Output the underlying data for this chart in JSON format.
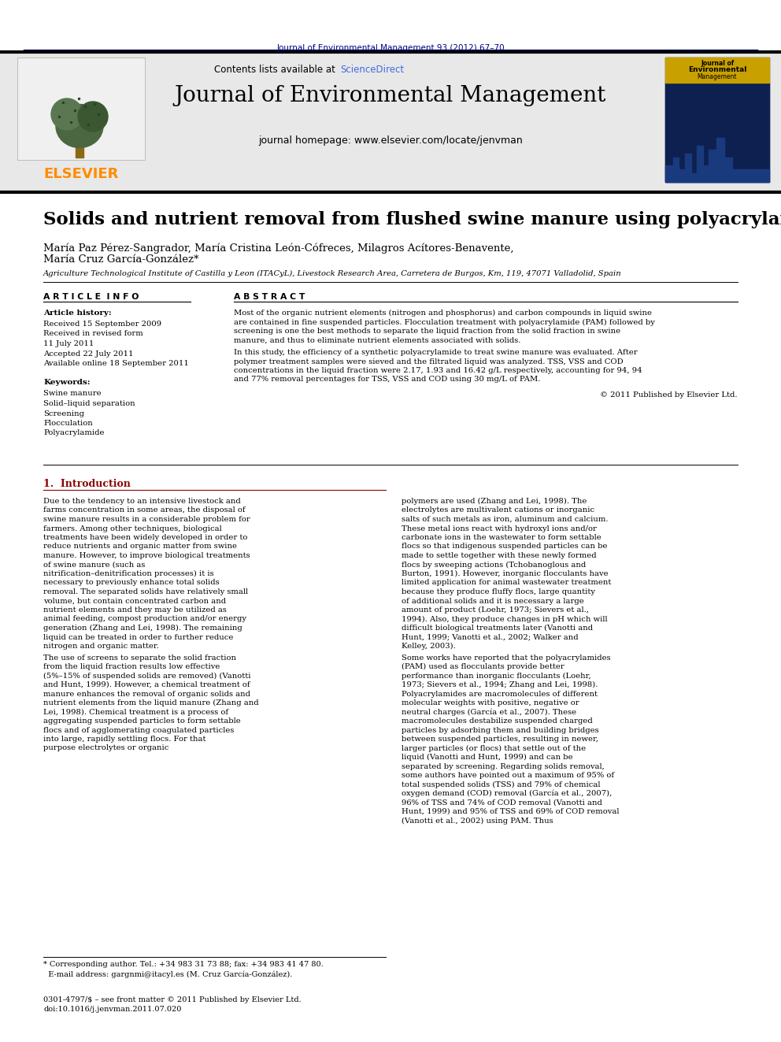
{
  "page_bg": "#ffffff",
  "top_journal_line": "Journal of Environmental Management 93 (2012) 67–70",
  "top_journal_color": "#00008B",
  "journal_title": "Journal of Environmental Management",
  "journal_homepage": "journal homepage: www.elsevier.com/locate/jenvman",
  "contents_text": "Contents lists available at ",
  "sciencedirect_text": "ScienceDirect",
  "sciencedirect_color": "#4169E1",
  "elsevier_color": "#FF8C00",
  "header_bg": "#E8E8E8",
  "paper_title": "Solids and nutrient removal from flushed swine manure using polyacrylamides",
  "authors_line1": "María Paz Pérez-Sangrador, María Cristina León-Cófreces, Milagros Acítores-Benavente,",
  "authors_line2": "María Cruz García-González*",
  "affiliation": "Agriculture Technological Institute of Castilla y Leon (ITACyL), Livestock Research Area, Carretera de Burgos, Km, 119, 47071 Valladolid, Spain",
  "article_info_header": "A R T I C L E  I N F O",
  "abstract_header": "A B S T R A C T",
  "article_history_label": "Article history:",
  "received_1": "Received 15 September 2009",
  "received_revised": "Received in revised form",
  "received_revised_date": "11 July 2011",
  "accepted": "Accepted 22 July 2011",
  "available": "Available online 18 September 2011",
  "keywords_label": "Keywords:",
  "keywords": [
    "Swine manure",
    "Solid–liquid separation",
    "Screening",
    "Flocculation",
    "Polyacrylamide"
  ],
  "abstract_para1": "Most of the organic nutrient elements (nitrogen and phosphorus) and carbon compounds in liquid swine are contained in fine suspended particles. Flocculation treatment with polyacrylamide (PAM) followed by screening is one the best methods to separate the liquid fraction from the solid fraction in swine manure, and thus to eliminate nutrient elements associated with solids.",
  "abstract_para2": "    In this study, the efficiency of a synthetic polyacrylamide to treat swine manure was evaluated. After polymer treatment samples were sieved and the filtrated liquid was analyzed. TSS, VSS and COD concentrations in the liquid fraction were 2.17, 1.93 and 16.42 g/L respectively, accounting for 94, 94 and 77% removal percentages for TSS, VSS and COD using 30 mg/L of PAM.",
  "abstract_copyright": "© 2011 Published by Elsevier Ltd.",
  "intro_header": "1.  Introduction",
  "intro_text_left": "Due to the tendency to an intensive livestock and farms concentration in some areas, the disposal of swine manure results in a considerable problem for farmers. Among other techniques, biological treatments have been widely developed in order to reduce nutrients and organic matter from swine manure. However, to improve biological treatments of swine manure (such as nitrification–denitrification processes) it is necessary to previously enhance total solids removal. The separated solids have relatively small volume, but contain concentrated carbon and nutrient elements and they may be utilized as animal feeding, compost production and/or energy generation (Zhang and Lei, 1998). The remaining liquid can be treated in order to further reduce nitrogen and organic matter.\n    The use of screens to separate the solid fraction from the liquid fraction results low effective (5%–15% of suspended solids are removed) (Vanotti and Hunt, 1999). However, a chemical treatment of manure enhances the removal of organic solids and nutrient elements from the liquid manure (Zhang and Lei, 1998). Chemical treatment is a process of aggregating suspended particles to form settable flocs and of agglomerating coagulated particles into large, rapidly settling flocs. For that purpose electrolytes or organic",
  "intro_text_right": "polymers are used (Zhang and Lei, 1998). The electrolytes are multivalent cations or inorganic salts of such metals as iron, aluminum and calcium. These metal ions react with hydroxyl ions and/or carbonate ions in the wastewater to form settable flocs so that indigenous suspended particles can be made to settle together with these newly formed flocs by sweeping actions (Tchobanoglous and Burton, 1991). However, inorganic flocculants have limited application for animal wastewater treatment because they produce fluffy flocs, large quantity of additional solids and it is necessary a large amount of product (Loehr, 1973; Sievers et al., 1994). Also, they produce changes in pH which will difficult biological treatments later (Vanotti and Hunt, 1999; Vanotti et al., 2002; Walker and Kelley, 2003).\n    Some works have reported that the polyacrylamides (PAM) used as flocculants provide better performance than inorganic flocculants (Loehr, 1973; Sievers et al., 1994; Zhang and Lei, 1998). Polyacrylamides are macromolecules of different molecular weights with positive, negative or neutral charges (García et al., 2007). These macromolecules destabilize suspended charged particles by adsorbing them and building bridges between suspended particles, resulting in newer, larger particles (or flocs) that settle out of the liquid (Vanotti and Hunt, 1999) and can be separated by screening. Regarding solids removal, some authors have pointed out a maximum of 95% of total suspended solids (TSS) and 79% of chemical oxygen demand (COD) removal (García et al., 2007), 96% of TSS and 74% of COD removal (Vanotti and Hunt, 1999) and 95% of TSS and 69% of COD removal (Vanotti et al., 2002) using PAM. Thus",
  "footnote_line1": "* Corresponding author. Tel.: +34 983 31 73 88; fax: +34 983 41 47 80.",
  "footnote_line2": "  E-mail address: gargnmi@itacyl.es (M. Cruz García-González).",
  "copyright_line1": "0301-4797/$ – see front matter © 2011 Published by Elsevier Ltd.",
  "copyright_line2": "doi:10.1016/j.jenvman.2011.07.020"
}
